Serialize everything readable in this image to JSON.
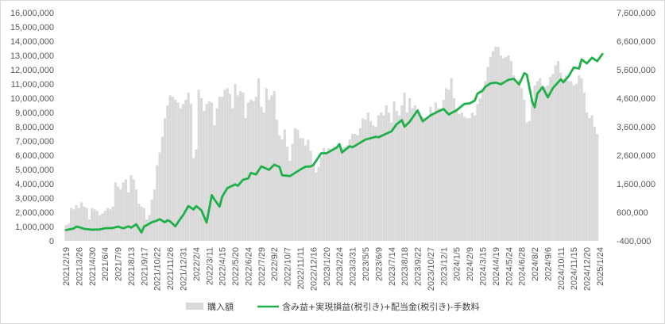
{
  "chart_data": {
    "type": "bar+line",
    "grid": false,
    "legend_position": "bottom",
    "left_axis": {
      "range": [
        0,
        16000000
      ],
      "ticks": [
        "0",
        "1,000,000",
        "2,000,000",
        "3,000,000",
        "4,000,000",
        "5,000,000",
        "6,000,000",
        "7,000,000",
        "8,000,000",
        "9,000,000",
        "10,000,000",
        "11,000,000",
        "12,000,000",
        "13,000,000",
        "14,000,000",
        "15,000,000",
        "16,000,000"
      ]
    },
    "right_axis": {
      "range": [
        -400000,
        7600000
      ],
      "ticks": [
        "-400,000",
        "600,000",
        "1,600,000",
        "2,600,000",
        "3,600,000",
        "4,600,000",
        "5,600,000",
        "6,600,000",
        "7,600,000"
      ]
    },
    "x_tick_labels": [
      "2021/2/19",
      "2021/3/26",
      "2021/4/30",
      "2021/6/4",
      "2021/7/9",
      "2021/8/13",
      "2021/9/17",
      "2021/10/22",
      "2021/11/26",
      "2021/12/31",
      "2022/2/4",
      "2022/3/11",
      "2022/4/15",
      "2022/5/20",
      "2022/6/24",
      "2022/7/29",
      "2022/9/2",
      "2022/10/7",
      "2022/11/11",
      "2022/12/16",
      "2023/1/20",
      "2023/2/24",
      "2023/3/31",
      "2023/5/5",
      "2023/6/9",
      "2023/7/14",
      "2023/8/18",
      "2023/9/22",
      "2023/10/27",
      "2023/12/1",
      "2024/1/5",
      "2024/2/9",
      "2024/3/15",
      "2024/4/19",
      "2024/5/24",
      "2024/6/28",
      "2024/8/2",
      "2024/9/6",
      "2024/10/11",
      "2024/11/15",
      "2024/12/20",
      "2025/1/24"
    ],
    "series": [
      {
        "name": "購入額",
        "type": "bar",
        "axis": "left",
        "color": "#d9d9d9",
        "values": [
          1100000,
          1200000,
          2300000,
          2200000,
          2500000,
          2300000,
          2700000,
          2400000,
          2300000,
          1500000,
          2300000,
          2200000,
          2100000,
          1800000,
          1900000,
          2100000,
          2300000,
          2200000,
          2400000,
          4100000,
          3800000,
          3600000,
          4100000,
          4300000,
          3400000,
          4600000,
          4300000,
          3600000,
          2600000,
          2400000,
          2300000,
          1500000,
          1800000,
          2900000,
          3600000,
          5300000,
          6200000,
          7300000,
          8600000,
          9500000,
          10200000,
          10100000,
          9900000,
          9700000,
          9300000,
          9600000,
          9900000,
          10400000,
          9600000,
          5800000,
          6400000,
          10600000,
          10000000,
          9100000,
          9600000,
          9800000,
          9700000,
          8100000,
          9300000,
          10100000,
          10100000,
          10600000,
          10700000,
          10300000,
          9300000,
          11000000,
          10200000,
          10500000,
          10400000,
          8600000,
          9700000,
          9900000,
          9800000,
          10100000,
          11400000,
          9400000,
          9000000,
          10700000,
          9900000,
          10200000,
          10500000,
          8500000,
          7400000,
          7100000,
          7800000,
          6600000,
          5600000,
          6800000,
          7900000,
          7800000,
          7200000,
          7200000,
          6700000,
          7100000,
          6300000,
          5400000,
          4800000,
          5200000,
          5900000,
          6500000,
          6200000,
          6500000,
          6300000,
          6600000,
          6600000,
          6700000,
          6500000,
          6600000,
          6700000,
          7100000,
          7500000,
          7500000,
          7400000,
          7900000,
          8600000,
          8500000,
          9000000,
          8400000,
          8100000,
          8000000,
          8800000,
          9000000,
          8800000,
          9500000,
          9000000,
          8300000,
          9800000,
          9100000,
          8800000,
          9500000,
          10400000,
          9000000,
          10000000,
          9300000,
          9500000,
          9100000,
          8800000,
          8700000,
          8600000,
          8600000,
          9400000,
          9000000,
          9700000,
          9300000,
          9100000,
          9900000,
          10700000,
          10600000,
          11400000,
          10000000,
          9100000,
          8900000,
          9000000,
          8700000,
          8600000,
          8600000,
          9000000,
          8800000,
          9600000,
          10000000,
          10700000,
          11200000,
          12200000,
          12900000,
          13300000,
          13600000,
          13600000,
          13000000,
          12800000,
          12900000,
          13000000,
          12600000,
          11600000,
          11100000,
          11300000,
          10700000,
          9900000,
          8300000,
          8400000,
          10000000,
          10900000,
          11200000,
          11400000,
          10900000,
          10800000,
          10900000,
          11500000,
          11700000,
          12300000,
          12600000,
          11800000,
          11400000,
          11600000,
          11200000,
          11200000,
          10900000,
          11000000,
          11600000,
          11400000,
          10400000,
          9000000,
          8600000,
          8800000,
          8000000,
          7500000
        ],
        "bar_x_start": "2021/2/19",
        "bar_interval_days": 7
      },
      {
        "name": "含み益+実現損益(税引き)+配当金(税引き)-手数料",
        "type": "line",
        "axis": "right",
        "color": "#1fb04a",
        "points": [
          [
            "2021/2/19",
            -20000
          ],
          [
            "2021/3/12",
            30000
          ],
          [
            "2021/3/19",
            100000
          ],
          [
            "2021/3/26",
            80000
          ],
          [
            "2021/4/9",
            20000
          ],
          [
            "2021/4/30",
            -10000
          ],
          [
            "2021/5/21",
            0
          ],
          [
            "2021/6/4",
            40000
          ],
          [
            "2021/6/25",
            50000
          ],
          [
            "2021/7/9",
            100000
          ],
          [
            "2021/7/23",
            40000
          ],
          [
            "2021/8/6",
            110000
          ],
          [
            "2021/8/13",
            60000
          ],
          [
            "2021/8/27",
            180000
          ],
          [
            "2021/9/10",
            -110000
          ],
          [
            "2021/9/17",
            100000
          ],
          [
            "2021/10/8",
            250000
          ],
          [
            "2021/10/22",
            310000
          ],
          [
            "2021/10/29",
            360000
          ],
          [
            "2021/11/12",
            250000
          ],
          [
            "2021/11/19",
            320000
          ],
          [
            "2021/11/26",
            280000
          ],
          [
            "2021/12/10",
            110000
          ],
          [
            "2021/12/24",
            380000
          ],
          [
            "2021/12/31",
            500000
          ],
          [
            "2022/1/14",
            820000
          ],
          [
            "2022/1/28",
            700000
          ],
          [
            "2022/2/4",
            820000
          ],
          [
            "2022/2/18",
            670000
          ],
          [
            "2022/3/4",
            240000
          ],
          [
            "2022/3/18",
            1200000
          ],
          [
            "2022/3/25",
            1050000
          ],
          [
            "2022/4/8",
            800000
          ],
          [
            "2022/4/15",
            1150000
          ],
          [
            "2022/4/29",
            1450000
          ],
          [
            "2022/5/20",
            1580000
          ],
          [
            "2022/5/27",
            1530000
          ],
          [
            "2022/6/10",
            1740000
          ],
          [
            "2022/6/24",
            1790000
          ],
          [
            "2022/7/1",
            1980000
          ],
          [
            "2022/7/15",
            1930000
          ],
          [
            "2022/7/29",
            2210000
          ],
          [
            "2022/8/19",
            2090000
          ],
          [
            "2022/9/2",
            2270000
          ],
          [
            "2022/9/16",
            2190000
          ],
          [
            "2022/9/23",
            1900000
          ],
          [
            "2022/10/14",
            1870000
          ],
          [
            "2022/11/11",
            2100000
          ],
          [
            "2022/11/25",
            2200000
          ],
          [
            "2022/12/9",
            2210000
          ],
          [
            "2022/12/16",
            2260000
          ],
          [
            "2023/1/6",
            2670000
          ],
          [
            "2023/1/20",
            2670000
          ],
          [
            "2023/2/17",
            2870000
          ],
          [
            "2023/2/24",
            2990000
          ],
          [
            "2023/3/3",
            2700000
          ],
          [
            "2023/3/24",
            2920000
          ],
          [
            "2023/3/31",
            2880000
          ],
          [
            "2023/5/5",
            3150000
          ],
          [
            "2023/6/2",
            3250000
          ],
          [
            "2023/6/9",
            3230000
          ],
          [
            "2023/7/14",
            3440000
          ],
          [
            "2023/7/28",
            3690000
          ],
          [
            "2023/8/11",
            3830000
          ],
          [
            "2023/8/18",
            3600000
          ],
          [
            "2023/9/1",
            3780000
          ],
          [
            "2023/9/22",
            4170000
          ],
          [
            "2023/10/6",
            3790000
          ],
          [
            "2023/10/27",
            4000000
          ],
          [
            "2023/11/17",
            4140000
          ],
          [
            "2023/12/1",
            4220000
          ],
          [
            "2023/12/15",
            4030000
          ],
          [
            "2024/1/5",
            4180000
          ],
          [
            "2024/1/26",
            4400000
          ],
          [
            "2024/2/9",
            4420000
          ],
          [
            "2024/2/23",
            4520000
          ],
          [
            "2024/3/1",
            4760000
          ],
          [
            "2024/3/15",
            4870000
          ],
          [
            "2024/3/22",
            5000000
          ],
          [
            "2024/4/5",
            5120000
          ],
          [
            "2024/4/19",
            5150000
          ],
          [
            "2024/5/3",
            5090000
          ],
          [
            "2024/5/24",
            5250000
          ],
          [
            "2024/6/7",
            5280000
          ],
          [
            "2024/6/21",
            5080000
          ],
          [
            "2024/7/5",
            5480000
          ],
          [
            "2024/7/12",
            5420000
          ],
          [
            "2024/7/26",
            4490000
          ],
          [
            "2024/8/2",
            4280000
          ],
          [
            "2024/8/9",
            4760000
          ],
          [
            "2024/8/23",
            4990000
          ],
          [
            "2024/9/6",
            4630000
          ],
          [
            "2024/9/20",
            4960000
          ],
          [
            "2024/10/11",
            5260000
          ],
          [
            "2024/10/18",
            5160000
          ],
          [
            "2024/11/1",
            5370000
          ],
          [
            "2024/11/15",
            5680000
          ],
          [
            "2024/11/29",
            5640000
          ],
          [
            "2024/12/6",
            5960000
          ],
          [
            "2024/12/20",
            5820000
          ],
          [
            "2025/1/3",
            6020000
          ],
          [
            "2025/1/17",
            5900000
          ],
          [
            "2025/1/31",
            6150000
          ]
        ]
      }
    ]
  }
}
